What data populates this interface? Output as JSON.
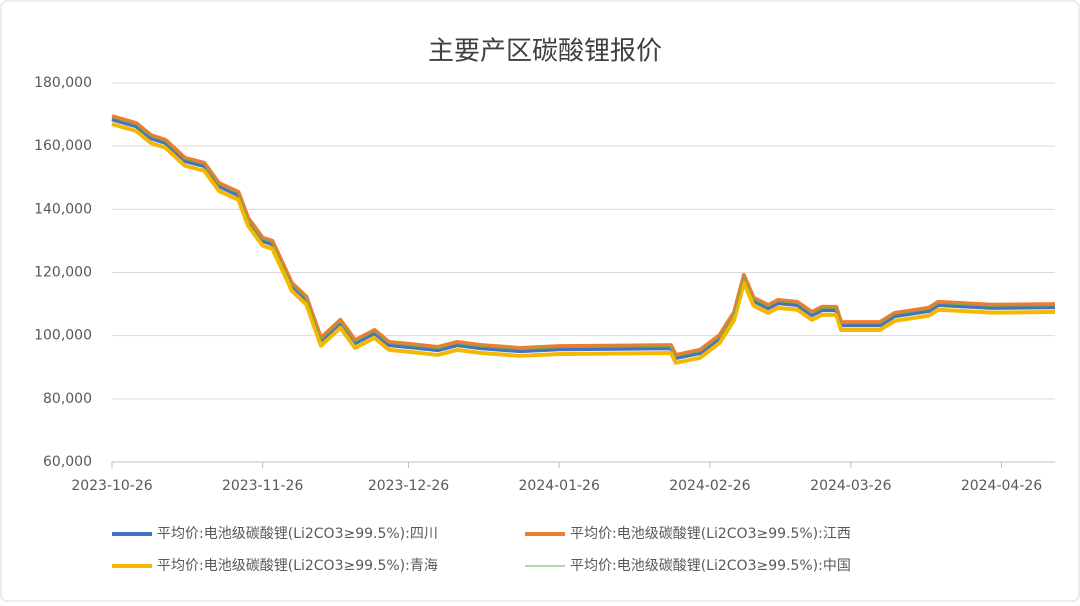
{
  "chart_data": {
    "type": "line",
    "title": "主要产区碳酸锂报价",
    "x": [
      "2023-10-26",
      "2023-10-31",
      "2023-11-03",
      "2023-11-06",
      "2023-11-10",
      "2023-11-14",
      "2023-11-17",
      "2023-11-21",
      "2023-11-23",
      "2023-11-26",
      "2023-11-28",
      "2023-12-02",
      "2023-12-05",
      "2023-12-08",
      "2023-12-12",
      "2023-12-15",
      "2023-12-19",
      "2023-12-22",
      "2023-12-26",
      "2024-01-01",
      "2024-01-05",
      "2024-01-10",
      "2024-01-18",
      "2024-01-26",
      "2024-02-18",
      "2024-02-19",
      "2024-02-24",
      "2024-02-28",
      "2024-03-02",
      "2024-03-04",
      "2024-03-06",
      "2024-03-09",
      "2024-03-11",
      "2024-03-15",
      "2024-03-18",
      "2024-03-20",
      "2024-03-23",
      "2024-03-24",
      "2024-04-01",
      "2024-04-04",
      "2024-04-11",
      "2024-04-13",
      "2024-04-24",
      "2024-05-07"
    ],
    "series": [
      {
        "name": "平均价:电池级碳酸锂(Li2CO3≥99.5%):四川",
        "color": "#4472c4",
        "width": 4,
        "values": [
          168500,
          166300,
          162500,
          161000,
          155300,
          153700,
          147300,
          144500,
          136300,
          130000,
          129000,
          115700,
          111300,
          98300,
          104000,
          97600,
          100800,
          97000,
          96400,
          95400,
          97000,
          96000,
          95100,
          95700,
          96000,
          92900,
          94500,
          99200,
          106500,
          118200,
          111000,
          108700,
          110300,
          109700,
          106500,
          108100,
          108100,
          103300,
          103300,
          106200,
          107800,
          109700,
          108800,
          109000
        ]
      },
      {
        "name": "平均价:电池级碳酸锂(Li2CO3≥99.5%):江西",
        "color": "#ed7d31",
        "width": 4,
        "values": [
          169500,
          167300,
          163500,
          162000,
          156300,
          154700,
          148300,
          145500,
          137300,
          131000,
          130000,
          116700,
          112300,
          99300,
          105000,
          98600,
          101800,
          98000,
          97400,
          96400,
          98000,
          97000,
          96100,
          96700,
          97000,
          93900,
          95500,
          100200,
          107500,
          119200,
          112000,
          109700,
          111300,
          110700,
          107500,
          109100,
          109100,
          104300,
          104300,
          107200,
          108800,
          110700,
          109800,
          110000
        ]
      },
      {
        "name": "平均价:电池级碳酸锂(Li2CO3≥99.5%):青海",
        "color": "#f5b800",
        "width": 4,
        "values": [
          167000,
          164800,
          161000,
          159500,
          153800,
          152200,
          145800,
          143000,
          134800,
          128500,
          127500,
          114200,
          109800,
          96800,
          102500,
          96100,
          99300,
          95500,
          94900,
          93900,
          95500,
          94500,
          93600,
          94200,
          94500,
          91400,
          93000,
          97700,
          105000,
          116700,
          109500,
          107200,
          108800,
          108200,
          105000,
          106600,
          106600,
          101800,
          101800,
          104700,
          106300,
          108200,
          107300,
          107500
        ]
      },
      {
        "name": "平均价:电池级碳酸锂(Li2CO3≥99.5%):中国",
        "color": "#70ad47",
        "width": 1,
        "values": [
          169000,
          166800,
          163000,
          161500,
          155800,
          154200,
          147800,
          145000,
          136800,
          130500,
          129500,
          116200,
          111800,
          98800,
          104500,
          98100,
          101300,
          97500,
          96900,
          95900,
          97500,
          96500,
          95600,
          96200,
          96500,
          93400,
          95000,
          99700,
          107000,
          118700,
          111500,
          109200,
          110800,
          110200,
          107000,
          108600,
          108600,
          103800,
          103800,
          106700,
          108300,
          110200,
          109300,
          109500
        ]
      }
    ],
    "xlim": [
      "2023-10-26",
      "2024-05-07"
    ],
    "xticks": [
      "2023-10-26",
      "2023-11-26",
      "2023-12-26",
      "2024-01-26",
      "2024-02-26",
      "2024-03-26",
      "2024-04-26"
    ],
    "ylim": [
      60000,
      180000
    ],
    "yticks": [
      {
        "value": 60000,
        "label": "60,000"
      },
      {
        "value": 80000,
        "label": "80,000"
      },
      {
        "value": 100000,
        "label": "100,000"
      },
      {
        "value": 120000,
        "label": "120,000"
      },
      {
        "value": 140000,
        "label": "140,000"
      },
      {
        "value": 160000,
        "label": "160,000"
      },
      {
        "value": 180000,
        "label": "180,000"
      }
    ],
    "grid": true,
    "legend": "bottom"
  }
}
